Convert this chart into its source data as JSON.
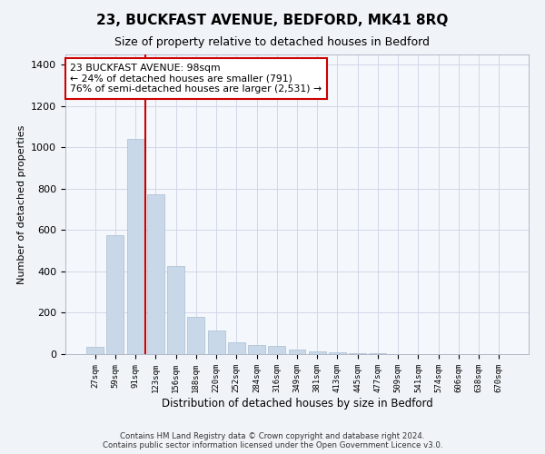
{
  "title": "23, BUCKFAST AVENUE, BEDFORD, MK41 8RQ",
  "subtitle": "Size of property relative to detached houses in Bedford",
  "xlabel": "Distribution of detached houses by size in Bedford",
  "ylabel": "Number of detached properties",
  "bar_color": "#c8d8e8",
  "bar_edge_color": "#a8bcd0",
  "grid_color": "#d0d8e8",
  "annotation_line_color": "#cc0000",
  "annotation_box_color": "#cc0000",
  "annotation_text": "23 BUCKFAST AVENUE: 98sqm\n← 24% of detached houses are smaller (791)\n76% of semi-detached houses are larger (2,531) →",
  "property_bin_index": 2,
  "categories": [
    "27sqm",
    "59sqm",
    "91sqm",
    "123sqm",
    "156sqm",
    "188sqm",
    "220sqm",
    "252sqm",
    "284sqm",
    "316sqm",
    "349sqm",
    "381sqm",
    "413sqm",
    "445sqm",
    "477sqm",
    "509sqm",
    "541sqm",
    "574sqm",
    "606sqm",
    "638sqm",
    "670sqm"
  ],
  "values": [
    35,
    575,
    1040,
    775,
    425,
    180,
    115,
    58,
    45,
    38,
    22,
    12,
    10,
    5,
    3,
    2,
    0,
    0,
    0,
    0,
    0
  ],
  "ylim": [
    0,
    1450
  ],
  "yticks": [
    0,
    200,
    400,
    600,
    800,
    1000,
    1200,
    1400
  ],
  "footnote": "Contains HM Land Registry data © Crown copyright and database right 2024.\nContains public sector information licensed under the Open Government Licence v3.0.",
  "background_color": "#f0f4f8",
  "plot_bg_color": "#f4f7fb"
}
